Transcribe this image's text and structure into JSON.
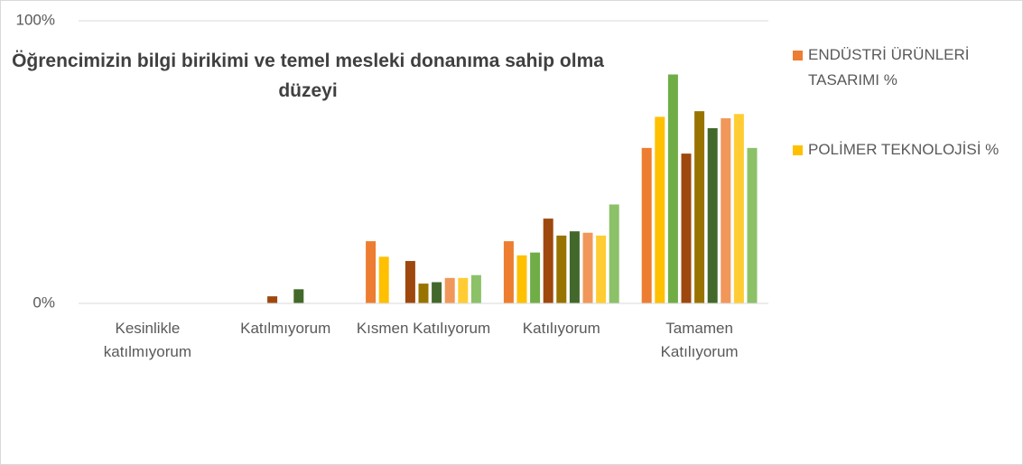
{
  "chart_data": {
    "type": "bar",
    "title": "Öğrencimizin bilgi birikimi ve temel mesleki donanıma sahip olma düzeyi",
    "categories": [
      "Kesinlikle katılmıyorum",
      "Katılmıyorum",
      "Kısmen Katılıyorum",
      "Katılıyorum",
      "Tamamen Katılıyorum"
    ],
    "series": [
      {
        "name": "ENDÜSTRİ ÜRÜNLERİ TASARIMI %",
        "color": "#ed7d31",
        "values": [
          0,
          0,
          22,
          22,
          55
        ]
      },
      {
        "name": "POLİMER TEKNOLOJİSİ %",
        "color": "#ffc000",
        "values": [
          0,
          0,
          16.5,
          17,
          66
        ]
      },
      {
        "color": "#70ad47",
        "values": [
          0,
          0,
          0,
          18,
          81
        ]
      },
      {
        "color": "#9e480e",
        "values": [
          0,
          2.5,
          15,
          30,
          53
        ]
      },
      {
        "color": "#997300",
        "values": [
          0,
          0,
          7,
          24,
          68
        ]
      },
      {
        "color": "#43682b",
        "values": [
          0,
          5,
          7.5,
          25.5,
          62
        ]
      },
      {
        "color": "#f1975a",
        "values": [
          0,
          0,
          9,
          25,
          65.5
        ]
      },
      {
        "color": "#ffcd33",
        "values": [
          0,
          0,
          9,
          24,
          67
        ]
      },
      {
        "color": "#8cc168",
        "values": [
          0,
          0,
          10,
          35,
          55
        ]
      }
    ],
    "ylim": [
      0,
      100
    ],
    "yticks": [
      {
        "value": 0,
        "label": "0%"
      },
      {
        "value": 100,
        "label": "100%"
      }
    ],
    "grid": true
  }
}
